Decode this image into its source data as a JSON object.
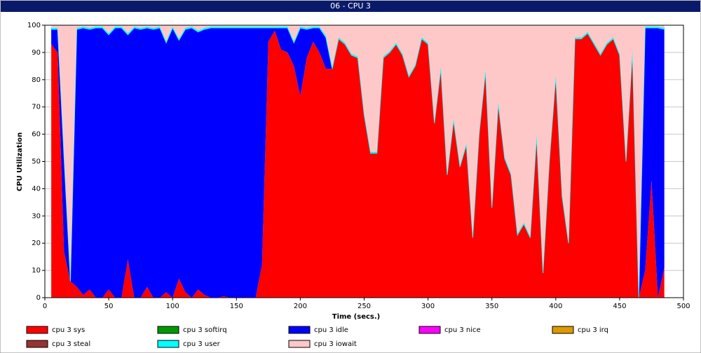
{
  "chart_data": {
    "type": "stacked-area",
    "title": "06 - CPU 3",
    "x_label": "Time (secs.)",
    "y_label": "CPU Utilization",
    "xlim": [
      0,
      500
    ],
    "xticks": [
      0,
      50,
      100,
      150,
      200,
      250,
      300,
      350,
      400,
      450,
      500
    ],
    "ylim": [
      0,
      100
    ],
    "yticks": [
      0,
      10,
      20,
      30,
      40,
      50,
      60,
      70,
      80,
      90,
      100
    ],
    "grid": true,
    "x": [
      5,
      10,
      15,
      20,
      25,
      30,
      35,
      40,
      45,
      50,
      55,
      60,
      65,
      70,
      75,
      80,
      85,
      90,
      95,
      100,
      105,
      110,
      115,
      120,
      125,
      130,
      135,
      140,
      145,
      150,
      155,
      160,
      165,
      170,
      175,
      180,
      185,
      190,
      195,
      200,
      205,
      210,
      215,
      220,
      225,
      230,
      235,
      240,
      245,
      250,
      255,
      260,
      265,
      270,
      275,
      280,
      285,
      290,
      295,
      300,
      305,
      310,
      315,
      320,
      325,
      330,
      335,
      340,
      345,
      350,
      355,
      360,
      365,
      370,
      375,
      380,
      385,
      390,
      395,
      400,
      405,
      410,
      415,
      420,
      425,
      430,
      435,
      440,
      445,
      450,
      455,
      460,
      465,
      470,
      475,
      480,
      485
    ],
    "series": [
      {
        "name": "cpu 3 sys",
        "color": "#ff0000",
        "values": [
          93,
          90,
          17,
          6,
          4,
          1,
          3,
          0,
          0,
          3,
          0,
          0,
          14,
          0,
          0,
          4,
          0,
          0,
          2,
          0,
          7,
          2,
          0,
          3,
          1,
          0,
          0,
          0.5,
          0,
          0,
          0,
          0,
          0,
          12,
          94,
          98,
          91,
          90,
          85,
          74,
          88,
          94,
          90,
          84,
          84,
          95,
          93,
          89,
          88,
          67,
          53,
          53,
          88,
          90,
          93,
          89,
          81,
          85,
          95,
          93,
          64,
          84,
          45,
          65,
          48,
          56,
          22,
          60,
          83,
          33,
          71,
          51,
          45,
          23,
          27,
          22,
          59,
          9,
          50,
          81,
          37,
          20,
          95,
          95,
          97,
          93,
          89,
          93,
          95,
          89,
          50,
          90,
          0,
          10,
          43,
          0,
          11
        ]
      },
      {
        "name": "cpu 3 softirq",
        "color": "#009900",
        "values": [
          0,
          0,
          0,
          0,
          0,
          0,
          0,
          0,
          0,
          0,
          0,
          0,
          0,
          0,
          0,
          0,
          0,
          0,
          0,
          0,
          0,
          0,
          0,
          0,
          0,
          0,
          0,
          0,
          0,
          0,
          0,
          0,
          0,
          0,
          0,
          0,
          0,
          0,
          0,
          0,
          0,
          0,
          0,
          0,
          0,
          0,
          0,
          0,
          0,
          0,
          0,
          0,
          0,
          0,
          0,
          0,
          0,
          0,
          0,
          0,
          0,
          0,
          0,
          0,
          0,
          0,
          0,
          0,
          0,
          0,
          0,
          0,
          0,
          0,
          0,
          0,
          0,
          0,
          0,
          0,
          0,
          0,
          0,
          0,
          0,
          0,
          0,
          0,
          0,
          0,
          0,
          0,
          0,
          0,
          0,
          0,
          0
        ]
      },
      {
        "name": "cpu 3 idle",
        "color": "#0000ff",
        "values": [
          5.5,
          8.5,
          34.5,
          0,
          94.5,
          98,
          95.5,
          99,
          99,
          93.5,
          99,
          99,
          82.5,
          99,
          98.5,
          95,
          98.5,
          99,
          91.5,
          99,
          87.5,
          96.5,
          99,
          94.5,
          97.5,
          99,
          99,
          98.5,
          99,
          99,
          99,
          99,
          99,
          87,
          5,
          1,
          8,
          9,
          8.5,
          25,
          10.5,
          5,
          9,
          11.5,
          0,
          0,
          0,
          0,
          0,
          0,
          0,
          0,
          0,
          0,
          0,
          0,
          0,
          0,
          0,
          0,
          0,
          0,
          0,
          0,
          0,
          0,
          0,
          0,
          0,
          0,
          0,
          0,
          0,
          0,
          0,
          0,
          0,
          0,
          0,
          0,
          0,
          0,
          0,
          0,
          0,
          0,
          0,
          0,
          0,
          0,
          0,
          0,
          0,
          89,
          56,
          99,
          87.5
        ]
      },
      {
        "name": "cpu 3 nice",
        "color": "#ff00ff",
        "values": [
          0,
          0,
          0,
          0,
          0,
          0,
          0,
          0,
          0,
          0,
          0,
          0,
          0,
          0,
          0,
          0,
          0,
          0,
          0,
          0,
          0,
          0,
          0,
          0,
          0,
          0,
          0,
          0,
          0,
          0,
          0,
          0,
          0,
          0,
          0,
          0,
          0,
          0,
          0,
          0,
          0,
          0,
          0,
          0,
          0,
          0,
          0,
          0,
          0,
          0,
          0,
          0,
          0,
          0,
          0,
          0,
          0,
          0,
          0,
          0,
          0,
          0,
          0,
          0,
          0,
          0,
          0,
          0,
          0,
          0,
          0,
          0,
          0,
          0,
          0,
          0,
          0,
          0,
          0,
          0,
          0,
          0,
          0,
          0,
          0,
          0,
          0,
          0,
          0,
          0,
          0,
          0,
          0,
          0,
          0,
          0,
          0
        ]
      },
      {
        "name": "cpu 3 irq",
        "color": "#dd9900",
        "values": [
          0,
          0,
          0,
          0,
          0,
          0,
          0,
          0,
          0,
          0,
          0,
          0,
          0,
          0,
          0,
          0,
          0,
          0,
          0,
          0,
          0,
          0,
          0,
          0,
          0,
          0,
          0,
          0,
          0,
          0,
          0,
          0,
          0,
          0,
          0,
          0,
          0,
          0,
          0,
          0,
          0,
          0,
          0,
          0,
          0,
          0,
          0,
          0,
          0,
          0,
          0,
          0,
          0,
          0,
          0,
          0,
          0,
          0,
          0,
          0,
          0,
          0,
          0,
          0,
          0,
          0,
          0,
          0,
          0,
          0,
          0,
          0,
          0,
          0,
          0,
          0,
          0,
          0,
          0,
          0,
          0,
          0,
          0,
          0,
          0,
          0,
          0,
          0,
          0,
          0,
          0,
          0,
          0,
          0,
          0,
          0,
          0
        ]
      },
      {
        "name": "cpu 3 steal",
        "color": "#993333",
        "values": [
          0,
          0,
          0,
          0,
          0,
          0,
          0,
          0,
          0,
          0,
          0,
          0,
          0,
          0,
          0,
          0,
          0,
          0,
          0,
          0,
          0,
          0,
          0,
          0,
          0,
          0,
          0,
          0,
          0,
          0,
          0,
          0,
          0,
          0,
          0,
          0,
          0,
          0,
          0,
          0,
          0,
          0,
          0,
          0,
          0,
          0,
          0,
          0,
          0,
          0,
          0,
          0,
          0,
          0,
          0,
          0,
          0,
          0,
          0,
          0,
          0,
          0,
          0,
          0,
          0,
          0,
          0,
          0,
          0,
          0,
          0,
          0,
          0,
          0,
          0,
          0,
          0,
          0,
          0,
          0,
          0,
          0,
          0,
          0,
          0,
          0,
          0,
          0,
          0,
          0,
          0,
          0,
          0,
          0,
          0,
          0,
          0
        ]
      },
      {
        "name": "cpu 3 user",
        "color": "#00ffff",
        "values": [
          0.5,
          0.5,
          0.5,
          0.5,
          0.5,
          0.5,
          0.5,
          0.5,
          0.5,
          0.5,
          0.5,
          0.5,
          0.5,
          0.5,
          0.5,
          0.5,
          0.5,
          0.5,
          0.5,
          0.5,
          0.5,
          0.5,
          0.5,
          0.5,
          0.5,
          0.5,
          0.5,
          0.5,
          0.5,
          0.5,
          0.5,
          0.5,
          0.5,
          0.5,
          0.5,
          0.5,
          0.5,
          0.5,
          0.5,
          0.5,
          0.5,
          0.5,
          0.5,
          0.5,
          0.5,
          0.5,
          0.5,
          0.5,
          0.5,
          0.5,
          0.5,
          0.5,
          0.5,
          0.5,
          0.5,
          0.5,
          0.5,
          0.5,
          0.5,
          0.5,
          0.5,
          0.5,
          0.5,
          0.5,
          0.5,
          0.5,
          0.5,
          0.5,
          0.5,
          0.5,
          0.5,
          0.5,
          0.5,
          0.5,
          0.5,
          0.5,
          0.5,
          0.5,
          0.5,
          0.5,
          0.5,
          0.5,
          0.5,
          0.5,
          0.5,
          0.5,
          0.5,
          0.5,
          0.5,
          0.5,
          0.5,
          0.5,
          0.5,
          0.5,
          0.5,
          0.5,
          0.5
        ]
      },
      {
        "name": "cpu 3 iowait",
        "color": "#ffc8c8",
        "values": [
          1,
          1,
          48,
          93.5,
          1,
          0.5,
          1,
          0.5,
          0.5,
          3,
          0.5,
          0.5,
          3,
          0.5,
          1,
          0.5,
          1,
          0.5,
          6,
          0.5,
          5,
          1,
          0.5,
          2,
          1,
          0.5,
          0.5,
          0.5,
          0.5,
          0.5,
          0.5,
          0.5,
          0.5,
          0.5,
          0.5,
          0.5,
          0.5,
          0.5,
          6,
          0.5,
          1,
          0.5,
          0.5,
          4,
          15.5,
          4.5,
          6.5,
          10.5,
          11.5,
          32.5,
          46.5,
          46.5,
          11.5,
          9.5,
          6.5,
          10.5,
          18.5,
          14.5,
          4.5,
          6.5,
          35.5,
          15.5,
          54.5,
          34.5,
          51.5,
          43.5,
          77.5,
          39.5,
          16.5,
          66.5,
          28.5,
          48.5,
          54.5,
          76.5,
          72.5,
          77.5,
          40.5,
          90.5,
          49.5,
          18.5,
          62.5,
          79.5,
          4.5,
          4.5,
          2.5,
          6.5,
          10.5,
          6.5,
          4.5,
          10.5,
          49.5,
          9.5,
          99.5,
          0.5,
          0.5,
          0.5,
          1
        ]
      }
    ]
  }
}
